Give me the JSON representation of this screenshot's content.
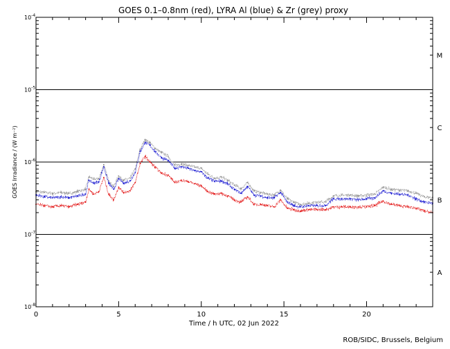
{
  "chart_data": {
    "type": "line",
    "title": "GOES 0.1–0.8nm (red), LYRA Al (blue) & Zr (grey) proxy",
    "xlabel": "Time / h UTC, 02 Jun 2022",
    "ylabel": "GOES Irradiance / (W m⁻²)",
    "xlim": [
      0,
      24
    ],
    "ylim": [
      1e-08,
      0.0001
    ],
    "yscale": "log",
    "x_ticks": [
      0,
      5,
      10,
      15,
      20
    ],
    "y_ticks": [
      {
        "base": "10",
        "exp": "-4",
        "value": 0.0001
      },
      {
        "base": "10",
        "exp": "-5",
        "value": 1e-05
      },
      {
        "base": "10",
        "exp": "-6",
        "value": 1e-06
      },
      {
        "base": "10",
        "exp": "-7",
        "value": 1e-07
      },
      {
        "base": "10",
        "exp": "-8",
        "value": 1e-08
      }
    ],
    "flare_class_lines": [
      1e-05,
      1e-06,
      1e-07
    ],
    "flare_classes": [
      {
        "label": "M",
        "value": 3e-05
      },
      {
        "label": "C",
        "value": 3e-06
      },
      {
        "label": "B",
        "value": 3e-07
      },
      {
        "label": "A",
        "value": 3e-08
      }
    ],
    "footer": "ROB/SIDC, Brussels, Belgium",
    "colors": {
      "red": "#e00000",
      "blue": "#0000cc",
      "grey": "#888888"
    },
    "x": [
      0,
      0.5,
      1,
      1.5,
      2,
      2.5,
      3,
      3.2,
      3.5,
      3.8,
      4.1,
      4.4,
      4.7,
      5.0,
      5.3,
      5.7,
      6.0,
      6.3,
      6.6,
      6.9,
      7.2,
      7.6,
      8.0,
      8.4,
      8.8,
      9.2,
      9.6,
      10.0,
      10.4,
      10.8,
      11.2,
      11.6,
      12.0,
      12.4,
      12.8,
      13.2,
      13.6,
      14.0,
      14.4,
      14.8,
      15.2,
      15.6,
      16.0,
      16.5,
      17.0,
      17.5,
      18.0,
      18.5,
      19.0,
      19.5,
      20.0,
      20.5,
      21.0,
      21.5,
      22.0,
      22.5,
      23.0,
      23.5,
      24.0
    ],
    "series": [
      {
        "name": "Zr (grey) proxy",
        "color": "grey",
        "values": [
          3.9e-07,
          3.8e-07,
          3.7e-07,
          3.8e-07,
          3.7e-07,
          3.9e-07,
          4.2e-07,
          6.2e-07,
          5.8e-07,
          5.9e-07,
          9.2e-07,
          5.5e-07,
          4.6e-07,
          6.4e-07,
          5.6e-07,
          6e-07,
          8e-07,
          1.5e-06,
          2.05e-06,
          1.85e-06,
          1.55e-06,
          1.35e-06,
          1.2e-06,
          9e-07,
          9.4e-07,
          9e-07,
          8.5e-07,
          8.2e-07,
          6.8e-07,
          6e-07,
          6.2e-07,
          5.6e-07,
          4.8e-07,
          4.3e-07,
          5.2e-07,
          4e-07,
          3.8e-07,
          3.6e-07,
          3.5e-07,
          4.1e-07,
          3.1e-07,
          2.8e-07,
          2.6e-07,
          2.7e-07,
          2.8e-07,
          2.8e-07,
          3.4e-07,
          3.5e-07,
          3.5e-07,
          3.4e-07,
          3.5e-07,
          3.6e-07,
          4.5e-07,
          4.2e-07,
          4.1e-07,
          4e-07,
          3.7e-07,
          3.3e-07,
          3.2e-07
        ]
      },
      {
        "name": "LYRA Al (blue) proxy",
        "color": "blue",
        "values": [
          3.5e-07,
          3.3e-07,
          3.2e-07,
          3.3e-07,
          3.2e-07,
          3.4e-07,
          3.6e-07,
          5.6e-07,
          5.1e-07,
          5.3e-07,
          8.6e-07,
          5.1e-07,
          4.2e-07,
          5.9e-07,
          5.1e-07,
          5.5e-07,
          7.2e-07,
          1.4e-06,
          1.85e-06,
          1.7e-06,
          1.4e-06,
          1.15e-06,
          1.05e-06,
          8.2e-07,
          8.6e-07,
          8.2e-07,
          7.6e-07,
          7.3e-07,
          6e-07,
          5.4e-07,
          5.5e-07,
          5e-07,
          4.2e-07,
          3.7e-07,
          4.6e-07,
          3.5e-07,
          3.4e-07,
          3.2e-07,
          3.2e-07,
          3.8e-07,
          2.8e-07,
          2.5e-07,
          2.4e-07,
          2.5e-07,
          2.5e-07,
          2.5e-07,
          3.1e-07,
          3.1e-07,
          3.1e-07,
          3e-07,
          3.1e-07,
          3.2e-07,
          4e-07,
          3.7e-07,
          3.6e-07,
          3.5e-07,
          3.1e-07,
          2.8e-07,
          2.7e-07
        ]
      },
      {
        "name": "GOES 0.1–0.8nm (red)",
        "color": "red",
        "values": [
          2.6e-07,
          2.5e-07,
          2.4e-07,
          2.5e-07,
          2.4e-07,
          2.6e-07,
          2.8e-07,
          4.2e-07,
          3.6e-07,
          3.9e-07,
          6.1e-07,
          3.6e-07,
          3e-07,
          4.5e-07,
          3.8e-07,
          4e-07,
          5.2e-07,
          9.5e-07,
          1.2e-06,
          1e-06,
          8.5e-07,
          7e-07,
          6.6e-07,
          5.2e-07,
          5.6e-07,
          5.4e-07,
          5e-07,
          4.7e-07,
          3.9e-07,
          3.6e-07,
          3.7e-07,
          3.4e-07,
          3e-07,
          2.8e-07,
          3.3e-07,
          2.6e-07,
          2.6e-07,
          2.5e-07,
          2.4e-07,
          3e-07,
          2.3e-07,
          2.2e-07,
          2.1e-07,
          2.2e-07,
          2.2e-07,
          2.2e-07,
          2.4e-07,
          2.4e-07,
          2.4e-07,
          2.4e-07,
          2.4e-07,
          2.5e-07,
          2.9e-07,
          2.6e-07,
          2.5e-07,
          2.4e-07,
          2.3e-07,
          2.1e-07,
          2e-07
        ]
      }
    ]
  }
}
